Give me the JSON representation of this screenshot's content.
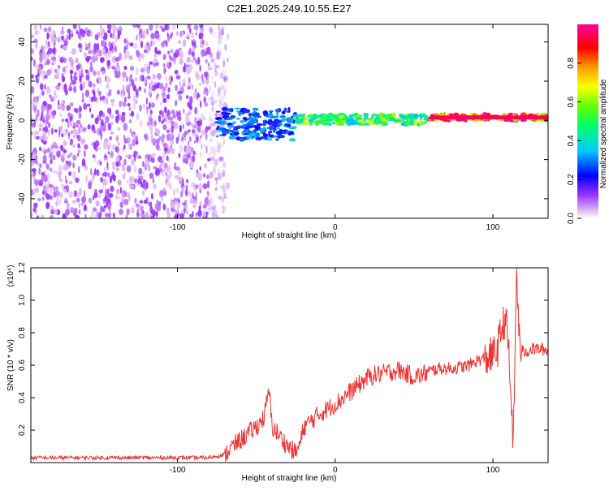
{
  "title": "C2E1.2025.249.10.55.E27",
  "chart_data": [
    {
      "type": "heatmap",
      "xlabel": "Height of straight line (km)",
      "ylabel": "Frequency (Hz)",
      "xlim": [
        -193,
        135
      ],
      "ylim": [
        -50,
        49
      ],
      "x_ticks": [
        -100,
        0,
        100
      ],
      "x_tick_labels": [
        "-100",
        "0",
        "100"
      ],
      "y_ticks": [
        -40,
        -20,
        0,
        20,
        40
      ],
      "y_tick_labels": [
        "-40",
        "-20",
        "0",
        "20",
        "40"
      ],
      "colorbar": {
        "label": "Normalized spectral amplitude",
        "range": [
          0,
          1
        ],
        "ticks": [
          0.0,
          0.2,
          0.4,
          0.6,
          0.8
        ],
        "tick_labels": [
          "0.0",
          "0.2",
          "0.4",
          "0.6",
          "0.8"
        ]
      },
      "regions": [
        {
          "name": "noise",
          "x_range": [
            -193,
            -68
          ],
          "freq_range": [
            -50,
            49
          ],
          "amplitude": 0.1
        },
        {
          "name": "band-onset",
          "x_range": [
            -75,
            -25
          ],
          "freq_range": [
            -10,
            6
          ],
          "amplitude": 0.3
        },
        {
          "name": "band-core",
          "x_range": [
            -25,
            60
          ],
          "freq_range": [
            -2,
            3
          ],
          "amplitude": 0.55
        },
        {
          "name": "band-strong",
          "x_range": [
            60,
            135
          ],
          "freq_range": [
            0,
            3
          ],
          "amplitude": 0.95
        }
      ]
    },
    {
      "type": "line",
      "xlabel": "Height of straight line (km)",
      "ylabel": "SNR (10 * v/v)",
      "y_scale_label": "(x10⁴)",
      "xlim": [
        -193,
        135
      ],
      "ylim": [
        0,
        1.2
      ],
      "x_ticks": [
        -100,
        0,
        100
      ],
      "x_tick_labels": [
        "-100",
        "0",
        "100"
      ],
      "y_ticks": [
        0.2,
        0.4,
        0.6,
        0.8,
        1.0,
        1.2
      ],
      "y_tick_labels": [
        "0.2",
        "0.4",
        "0.6",
        "0.8",
        "1.0",
        "1.2"
      ],
      "color": "#ee3333",
      "series": [
        {
          "name": "SNR",
          "x": [
            -193,
            -150,
            -100,
            -80,
            -70,
            -65,
            -60,
            -55,
            -50,
            -45,
            -42,
            -40,
            -38,
            -35,
            -30,
            -25,
            -22,
            -20,
            -15,
            -10,
            -5,
            0,
            5,
            10,
            15,
            20,
            25,
            30,
            35,
            40,
            45,
            50,
            55,
            60,
            65,
            70,
            75,
            80,
            85,
            90,
            95,
            100,
            103,
            105,
            108,
            110,
            112,
            113,
            115,
            117,
            120,
            125,
            130,
            135
          ],
          "y": [
            0.03,
            0.03,
            0.03,
            0.03,
            0.05,
            0.1,
            0.14,
            0.18,
            0.22,
            0.28,
            0.45,
            0.22,
            0.2,
            0.16,
            0.1,
            0.06,
            0.12,
            0.22,
            0.26,
            0.3,
            0.33,
            0.36,
            0.4,
            0.44,
            0.48,
            0.52,
            0.54,
            0.55,
            0.56,
            0.57,
            0.55,
            0.53,
            0.54,
            0.56,
            0.58,
            0.58,
            0.58,
            0.59,
            0.6,
            0.63,
            0.64,
            0.66,
            0.7,
            0.8,
            0.9,
            0.68,
            0.3,
            0.1,
            1.2,
            0.7,
            0.68,
            0.7,
            0.7,
            0.69
          ]
        }
      ]
    }
  ]
}
